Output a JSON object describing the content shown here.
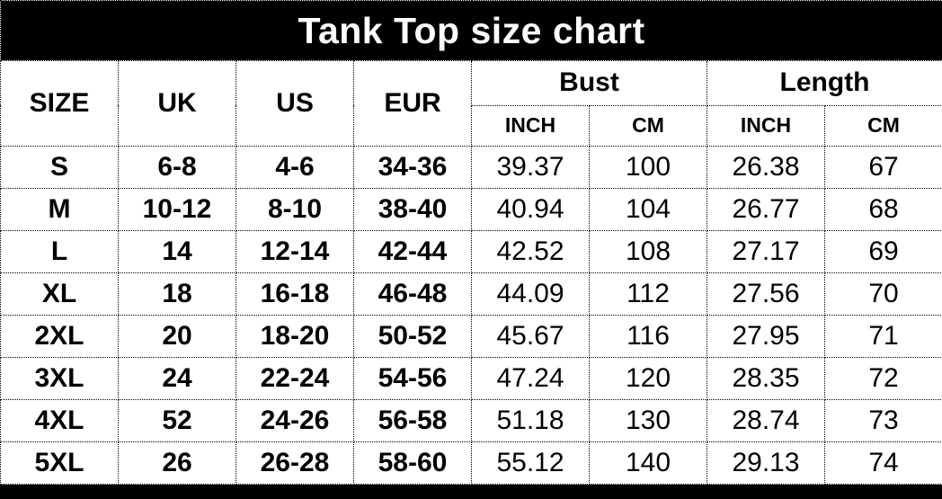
{
  "title": "Tank Top size chart",
  "table": {
    "columns": {
      "size": "SIZE",
      "uk": "UK",
      "us": "US",
      "eur": "EUR"
    },
    "groups": {
      "bust": {
        "label": "Bust",
        "sub": {
          "inch": "INCH",
          "cm": "CM"
        }
      },
      "length": {
        "label": "Length",
        "sub": {
          "inch": "INCH",
          "cm": "CM"
        }
      }
    },
    "rows": [
      {
        "size": "S",
        "uk": "6-8",
        "us": "4-6",
        "eur": "34-36",
        "bust_inch": "39.37",
        "bust_cm": "100",
        "length_inch": "26.38",
        "length_cm": "67"
      },
      {
        "size": "M",
        "uk": "10-12",
        "us": "8-10",
        "eur": "38-40",
        "bust_inch": "40.94",
        "bust_cm": "104",
        "length_inch": "26.77",
        "length_cm": "68"
      },
      {
        "size": "L",
        "uk": "14",
        "us": "12-14",
        "eur": "42-44",
        "bust_inch": "42.52",
        "bust_cm": "108",
        "length_inch": "27.17",
        "length_cm": "69"
      },
      {
        "size": "XL",
        "uk": "18",
        "us": "16-18",
        "eur": "46-48",
        "bust_inch": "44.09",
        "bust_cm": "112",
        "length_inch": "27.56",
        "length_cm": "70"
      },
      {
        "size": "2XL",
        "uk": "20",
        "us": "18-20",
        "eur": "50-52",
        "bust_inch": "45.67",
        "bust_cm": "116",
        "length_inch": "27.95",
        "length_cm": "71"
      },
      {
        "size": "3XL",
        "uk": "24",
        "us": "22-24",
        "eur": "54-56",
        "bust_inch": "47.24",
        "bust_cm": "120",
        "length_inch": "28.35",
        "length_cm": "72"
      },
      {
        "size": "4XL",
        "uk": "52",
        "us": "24-26",
        "eur": "56-58",
        "bust_inch": "51.18",
        "bust_cm": "130",
        "length_inch": "28.74",
        "length_cm": "73"
      },
      {
        "size": "5XL",
        "uk": "26",
        "us": "26-28",
        "eur": "58-60",
        "bust_inch": "55.12",
        "bust_cm": "140",
        "length_inch": "29.13",
        "length_cm": "74"
      }
    ]
  },
  "colors": {
    "title_bg": "#000000",
    "title_text": "#ffffff",
    "body_bg": "#ffffff",
    "border": "#000000",
    "cell_text": "#000000"
  }
}
